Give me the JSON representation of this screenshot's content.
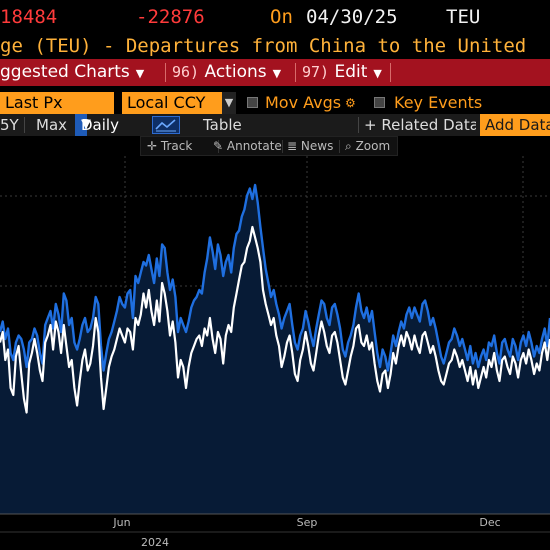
{
  "header": {
    "last_value": "18484",
    "change": "-22876",
    "on_label": "On",
    "date": "04/30/25",
    "unit": "TEU"
  },
  "title": "ge (TEU) - Departures from China to the United",
  "menu": {
    "suggested": {
      "label": "ggested Charts"
    },
    "actions": {
      "number": "96)",
      "label": "Actions"
    },
    "edit": {
      "number": "97)",
      "label": "Edit"
    }
  },
  "options": {
    "price_field": "Last Px",
    "currency": "Local CCY",
    "mov_avgs": "Mov Avgs",
    "key_events": "Key Events"
  },
  "range_bar": {
    "partial_range": "5Y",
    "max": "Max",
    "frequency": "Daily",
    "table": "Table",
    "related_data": "+ Related Data",
    "add_data": "Add Data"
  },
  "tools": {
    "track": "Track",
    "annotate": "Annotate",
    "news": "News",
    "zoom": "Zoom"
  },
  "colors": {
    "series_blue": "#1f6fe0",
    "series_white": "#ffffff",
    "area_fill": "#071b36",
    "menu_red": "#a3121f",
    "accent_orange": "#ff9d1c"
  },
  "chart_data": {
    "type": "line",
    "x_ticks": [
      "Jun",
      "Sep",
      "Dec"
    ],
    "year_label": "2024",
    "grid": true,
    "series": [
      {
        "color": "#1f6fe0",
        "values": [
          5.2,
          5.5,
          5.0,
          5.3,
          4.6,
          4.4,
          4.9,
          5.1,
          5.0,
          4.7,
          4.2,
          4.9,
          5.0,
          5.3,
          5.1,
          4.6,
          4.3,
          5.4,
          5.6,
          5.8,
          5.3,
          6.0,
          5.7,
          5.2,
          6.3,
          6.1,
          5.4,
          5.6,
          4.9,
          4.7,
          5.0,
          5.4,
          5.6,
          5.2,
          5.3,
          5.6,
          6.2,
          6.0,
          4.8,
          4.1,
          4.6,
          5.0,
          5.2,
          5.5,
          5.8,
          6.2,
          6.0,
          5.9,
          6.3,
          6.4,
          5.6,
          6.8,
          6.6,
          6.9,
          7.2,
          7.1,
          7.4,
          7.0,
          6.6,
          7.3,
          6.8,
          7.7,
          7.6,
          6.9,
          6.4,
          6.7,
          6.2,
          5.2,
          5.6,
          5.4,
          5.2,
          5.5,
          5.9,
          6.1,
          6.2,
          6.4,
          6.3,
          6.9,
          7.3,
          7.9,
          7.5,
          7.0,
          7.7,
          7.4,
          6.8,
          7.2,
          7.4,
          6.9,
          7.6,
          8.0,
          8.1,
          8.5,
          8.7,
          9.1,
          9.3,
          9.0,
          9.4,
          8.9,
          8.2,
          7.6,
          7.0,
          6.6,
          6.2,
          6.4,
          6.0,
          5.7,
          5.3,
          5.6,
          5.8,
          6.0,
          5.4,
          4.9,
          4.7,
          5.1,
          5.3,
          5.8,
          5.5,
          5.1,
          4.8,
          5.3,
          5.7,
          6.1,
          6.0,
          5.6,
          5.4,
          5.9,
          6.0,
          5.7,
          5.3,
          4.7,
          4.5,
          4.9,
          5.1,
          5.4,
          5.9,
          6.3,
          5.8,
          5.6,
          5.9,
          5.5,
          5.8,
          5.2,
          4.6,
          4.2,
          4.7,
          4.5,
          4.1,
          4.6,
          5.1,
          4.8,
          5.2,
          5.5,
          5.3,
          5.7,
          5.9,
          5.6,
          5.9,
          5.7,
          5.5,
          6.0,
          6.1,
          5.8,
          5.4,
          5.6,
          5.3,
          4.9,
          4.5,
          4.3,
          4.6,
          4.9,
          5.0,
          5.3,
          5.1,
          4.8,
          5.0,
          4.7,
          4.4,
          4.8,
          4.3,
          4.6,
          4.2,
          4.5,
          4.7,
          4.4,
          4.9,
          4.8,
          5.1,
          4.6,
          4.3,
          4.9,
          5.0,
          4.7,
          4.5,
          5.0,
          4.8,
          4.4,
          4.9,
          5.1,
          4.8,
          5.2,
          4.9,
          4.5,
          4.8,
          4.6,
          5.0,
          5.3,
          4.8,
          5.6
        ]
      },
      {
        "color": "#ffffff",
        "values": [
          4.9,
          5.2,
          4.4,
          4.7,
          3.6,
          3.4,
          4.5,
          4.8,
          4.0,
          3.3,
          2.9,
          4.3,
          4.6,
          5.0,
          4.6,
          4.1,
          3.8,
          4.9,
          5.1,
          5.4,
          4.7,
          5.5,
          5.2,
          4.6,
          5.4,
          4.8,
          4.2,
          4.4,
          3.6,
          3.1,
          3.8,
          4.4,
          4.7,
          4.1,
          4.3,
          4.8,
          5.6,
          5.2,
          3.9,
          3.0,
          3.6,
          4.2,
          4.5,
          4.7,
          5.0,
          5.3,
          5.1,
          4.9,
          5.3,
          5.2,
          4.7,
          5.6,
          5.4,
          5.7,
          6.3,
          5.9,
          6.4,
          5.8,
          5.4,
          6.1,
          5.5,
          6.6,
          6.3,
          5.8,
          5.1,
          5.5,
          4.9,
          3.9,
          4.4,
          4.2,
          3.6,
          4.2,
          4.6,
          4.8,
          5.0,
          5.1,
          4.8,
          5.3,
          5.1,
          5.6,
          5.0,
          4.6,
          5.2,
          5.0,
          4.3,
          5.1,
          5.4,
          5.2,
          5.9,
          6.3,
          6.7,
          7.1,
          7.2,
          7.6,
          7.8,
          8.2,
          7.9,
          7.6,
          7.2,
          6.4,
          6.0,
          5.7,
          5.4,
          5.6,
          5.1,
          4.8,
          4.2,
          4.5,
          4.9,
          5.1,
          4.6,
          4.0,
          3.8,
          4.4,
          4.7,
          5.2,
          4.8,
          4.3,
          4.1,
          4.6,
          5.1,
          5.5,
          5.2,
          4.8,
          4.6,
          5.1,
          5.2,
          4.9,
          4.4,
          3.9,
          3.7,
          4.1,
          4.5,
          4.8,
          5.3,
          5.4,
          4.9,
          4.8,
          5.1,
          4.7,
          4.9,
          4.3,
          3.8,
          3.5,
          4.0,
          4.1,
          3.6,
          4.0,
          4.6,
          4.3,
          4.8,
          5.1,
          4.8,
          5.2,
          5.0,
          4.7,
          5.1,
          4.8,
          4.6,
          5.1,
          5.2,
          4.9,
          4.6,
          4.8,
          4.5,
          4.1,
          3.8,
          3.7,
          4.0,
          4.3,
          4.4,
          4.7,
          4.5,
          4.2,
          4.4,
          4.1,
          3.8,
          4.2,
          3.7,
          4.1,
          3.6,
          3.9,
          4.2,
          3.9,
          4.4,
          4.2,
          4.6,
          4.1,
          3.8,
          4.4,
          4.5,
          4.2,
          4.0,
          4.5,
          4.3,
          3.9,
          4.4,
          4.6,
          4.3,
          4.7,
          4.4,
          4.0,
          4.3,
          4.1,
          4.6,
          4.9,
          4.4,
          5.0
        ]
      }
    ]
  }
}
